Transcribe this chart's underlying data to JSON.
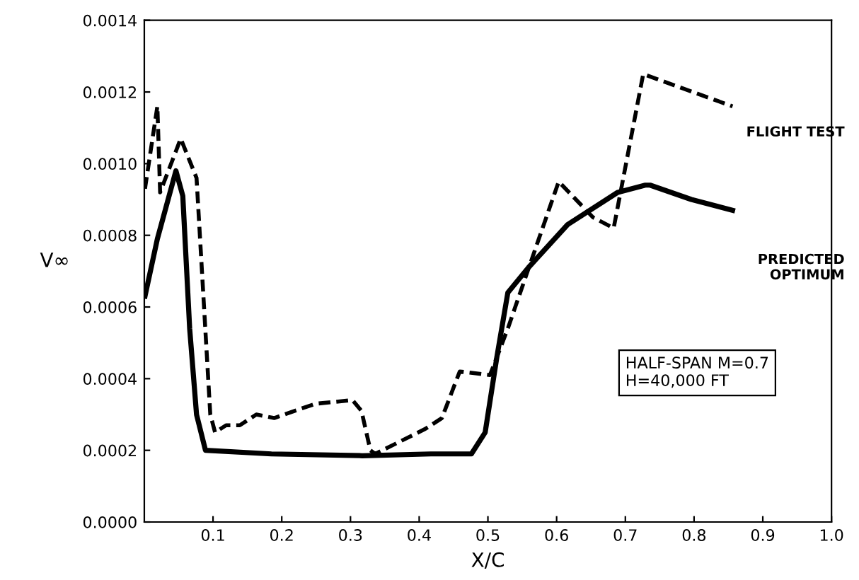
{
  "chart_data": {
    "type": "line",
    "xlabel": "X/C",
    "ylabel": "V∞",
    "xlim": [
      0,
      1.0
    ],
    "ylim": [
      0,
      0.0014
    ],
    "xticks": [
      0.1,
      0.2,
      0.3,
      0.4,
      0.5,
      0.6,
      0.7,
      0.8,
      0.9,
      {
        "value": 1.0,
        "label": "1.0"
      }
    ],
    "yticks": [
      {
        "value": 0,
        "label": "0.0000"
      },
      {
        "value": 0.0002,
        "label": "0.0002"
      },
      {
        "value": 0.0004,
        "label": "0.0004"
      },
      {
        "value": 0.0006,
        "label": "0.0006"
      },
      {
        "value": 0.0008,
        "label": "0.0008"
      },
      {
        "value": 0.001,
        "label": "0.0010"
      },
      {
        "value": 0.0012,
        "label": "0.0012"
      },
      {
        "value": 0.0014,
        "label": "0.0014"
      }
    ],
    "grid": false,
    "legend": false,
    "marker": "none",
    "annotations": [
      "HALF-SPAN M=0.7\nH=40,000 FT"
    ],
    "series": [
      {
        "name": "FLIGHT TEST",
        "color": "#000000",
        "line_style": "dashed",
        "x": [
          0.001,
          0.019,
          0.023,
          0.053,
          0.076,
          0.096,
          0.103,
          0.119,
          0.139,
          0.163,
          0.189,
          0.249,
          0.303,
          0.316,
          0.329,
          0.336,
          0.409,
          0.433,
          0.459,
          0.503,
          0.529,
          0.556,
          0.603,
          0.653,
          0.683,
          0.726,
          0.769,
          0.856
        ],
        "values": [
          0.00093,
          0.00116,
          0.00092,
          0.00107,
          0.00096,
          0.0003,
          0.00025,
          0.00027,
          0.00027,
          0.0003,
          0.00029,
          0.00033,
          0.00034,
          0.00031,
          0.0002,
          0.00019,
          0.00026,
          0.00029,
          0.00042,
          0.00041,
          0.00054,
          0.00069,
          0.00095,
          0.00085,
          0.00082,
          0.00125,
          0.00122,
          0.00116
        ]
      },
      {
        "name": "PREDICTED\nOPTIMUM",
        "color": "#000000",
        "line_style": "solid",
        "x": [
          0.001,
          0.019,
          0.046,
          0.056,
          0.066,
          0.076,
          0.089,
          0.185,
          0.317,
          0.417,
          0.476,
          0.496,
          0.513,
          0.529,
          0.559,
          0.616,
          0.689,
          0.729,
          0.736,
          0.796,
          0.856
        ],
        "values": [
          0.00063,
          0.00079,
          0.00098,
          0.00091,
          0.00054,
          0.0003,
          0.0002,
          0.00019,
          0.000185,
          0.00019,
          0.00019,
          0.00025,
          0.00046,
          0.00064,
          0.00071,
          0.00083,
          0.00092,
          0.00094,
          0.00094,
          0.0009,
          0.00087
        ]
      }
    ]
  }
}
